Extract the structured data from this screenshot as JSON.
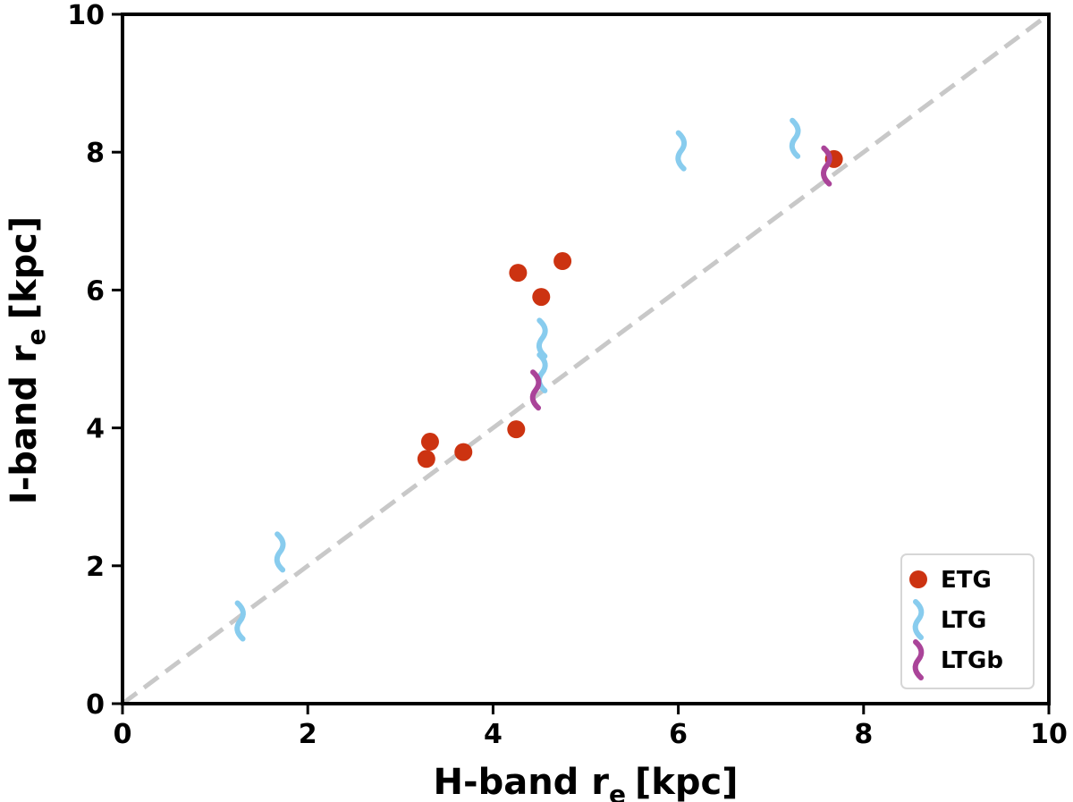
{
  "chart_data": {
    "type": "scatter",
    "xlabel": "H-band r",
    "ylabel": "I-band r",
    "label_subscript": "e",
    "label_unit": "[kpc]",
    "xlim": [
      0,
      10
    ],
    "ylim": [
      0,
      10
    ],
    "xticks": [
      0,
      2,
      4,
      6,
      8,
      10
    ],
    "yticks": [
      0,
      2,
      4,
      6,
      8,
      10
    ],
    "grid": false,
    "legend_position": "bottom-right",
    "reference_line": {
      "style": "dashed",
      "color": "#c8c8c8",
      "from": [
        0,
        0
      ],
      "to": [
        10,
        10
      ]
    },
    "series": [
      {
        "name": "ETG",
        "marker": "circle",
        "color": "#cc3311",
        "points": [
          {
            "x": 7.68,
            "y": 7.9
          },
          {
            "x": 4.27,
            "y": 6.25
          },
          {
            "x": 4.75,
            "y": 6.42
          },
          {
            "x": 4.52,
            "y": 5.9
          },
          {
            "x": 4.25,
            "y": 3.98
          },
          {
            "x": 3.32,
            "y": 3.8
          },
          {
            "x": 3.28,
            "y": 3.55
          },
          {
            "x": 3.68,
            "y": 3.65
          }
        ]
      },
      {
        "name": "LTG",
        "marker": "wave",
        "color": "#88ccee",
        "points": [
          {
            "x": 7.26,
            "y": 8.2
          },
          {
            "x": 6.03,
            "y": 8.02
          },
          {
            "x": 4.53,
            "y": 5.3
          },
          {
            "x": 4.53,
            "y": 4.8
          },
          {
            "x": 1.7,
            "y": 2.2
          },
          {
            "x": 1.27,
            "y": 1.2
          }
        ]
      },
      {
        "name": "LTGb",
        "marker": "wave",
        "color": "#aa4499",
        "points": [
          {
            "x": 7.6,
            "y": 7.8
          },
          {
            "x": 4.46,
            "y": 4.55
          }
        ]
      }
    ]
  }
}
